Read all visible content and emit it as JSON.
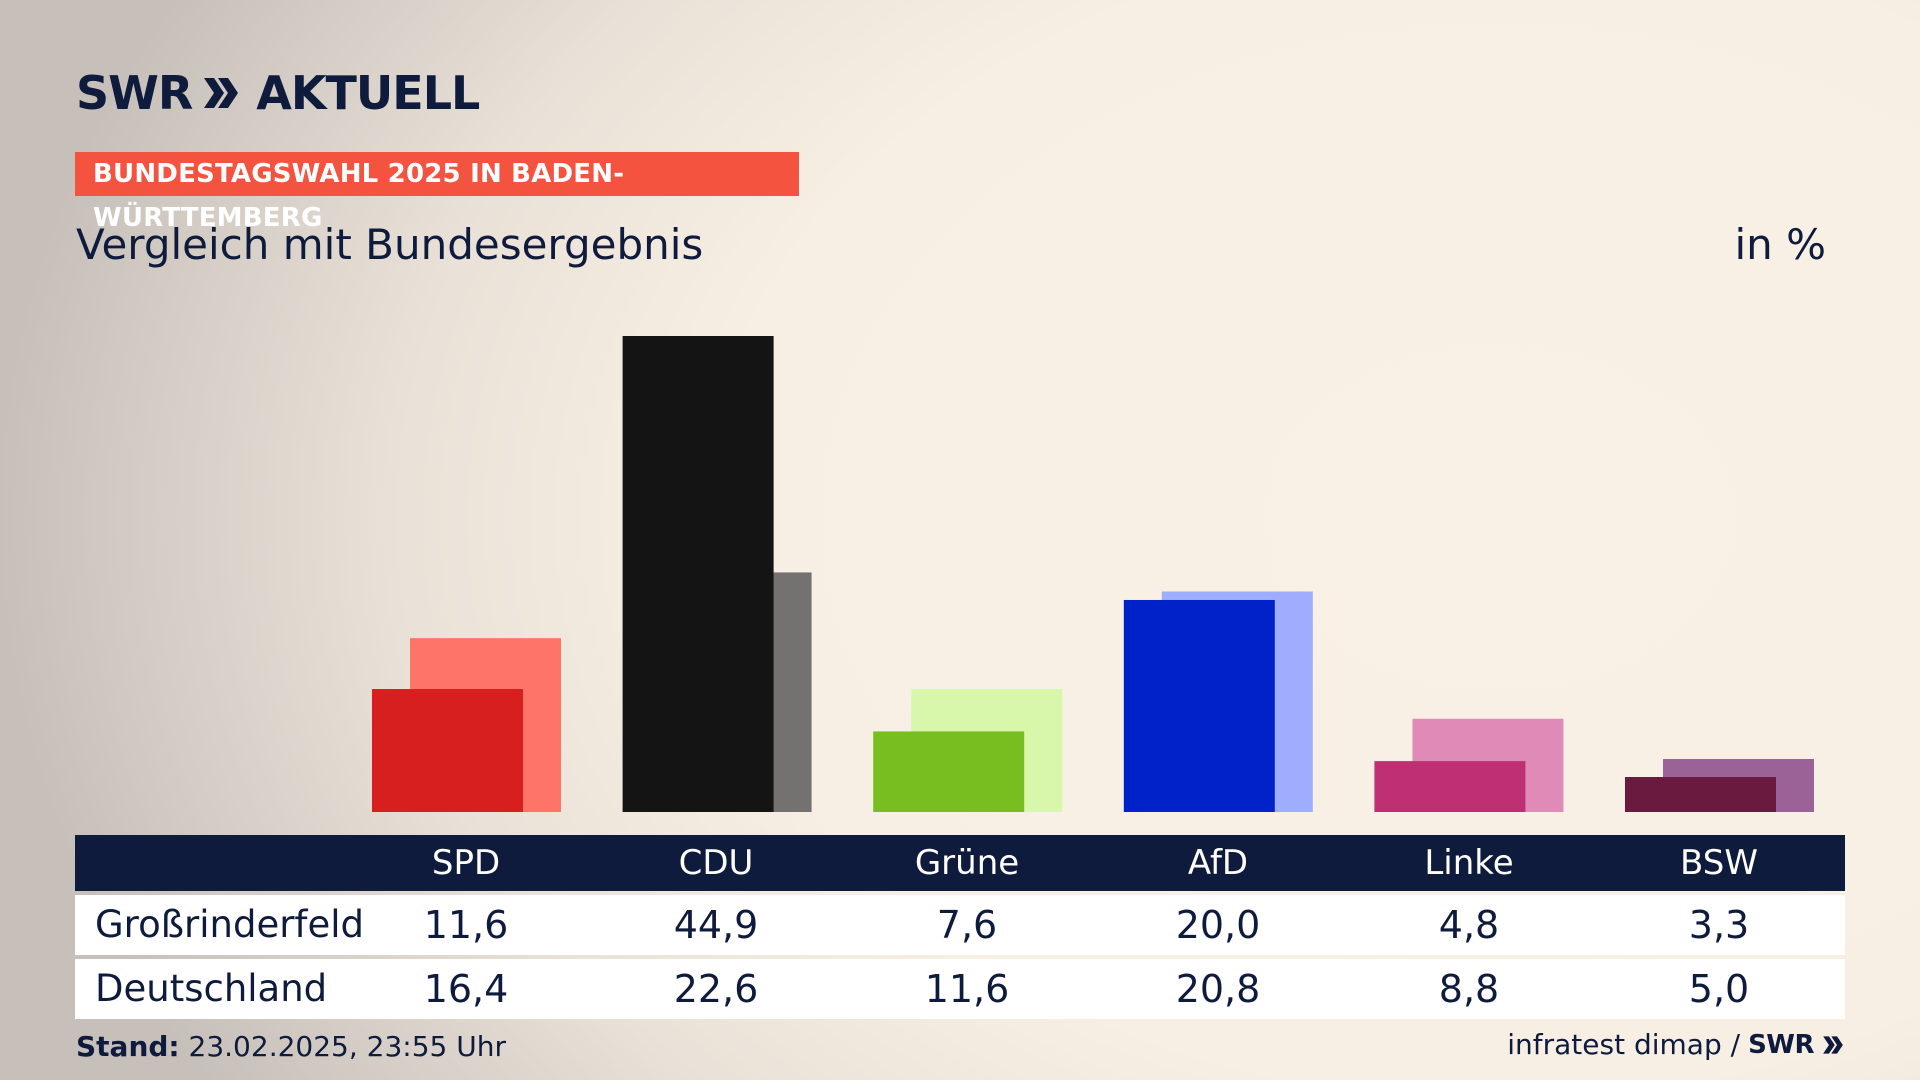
{
  "header": {
    "logo_left": "SWR",
    "logo_right": "AKTUELL",
    "banner": "BUNDESTAGSWAHL 2025 IN BADEN-WÜRTTEMBERG",
    "subtitle": "Vergleich mit Bundesergebnis",
    "unit": "in %"
  },
  "chart_data": {
    "type": "bar",
    "categories": [
      "SPD",
      "CDU",
      "Grüne",
      "AfD",
      "Linke",
      "BSW"
    ],
    "series": [
      {
        "name": "Großrinderfeld",
        "values": [
          11.6,
          44.9,
          7.6,
          20.0,
          4.8,
          3.3
        ]
      },
      {
        "name": "Deutschland",
        "values": [
          16.4,
          22.6,
          11.6,
          20.8,
          8.8,
          5.0
        ]
      }
    ],
    "ylim": [
      0,
      44.9
    ],
    "colors_primary": [
      "#d71f1f",
      "#141414",
      "#78be20",
      "#0022c8",
      "#bf2f73",
      "#6a1a3e"
    ],
    "colors_secondary": [
      "#ff7469",
      "#747271",
      "#d8f7ab",
      "#9fadff",
      "#e08bb7",
      "#9b6297"
    ]
  },
  "table": {
    "headers": [
      "SPD",
      "CDU",
      "Grüne",
      "AfD",
      "Linke",
      "BSW"
    ],
    "rows": [
      {
        "label": "Großrinderfeld",
        "values": [
          "11,6",
          "44,9",
          "7,6",
          "20,0",
          "4,8",
          "3,3"
        ]
      },
      {
        "label": "Deutschland",
        "values": [
          "16,4",
          "22,6",
          "11,6",
          "20,8",
          "8,8",
          "5,0"
        ]
      }
    ]
  },
  "footer": {
    "stand_label": "Stand:",
    "stand_value": "23.02.2025, 23:55 Uhr",
    "source": "infratest dimap /",
    "source_logo": "SWR"
  }
}
